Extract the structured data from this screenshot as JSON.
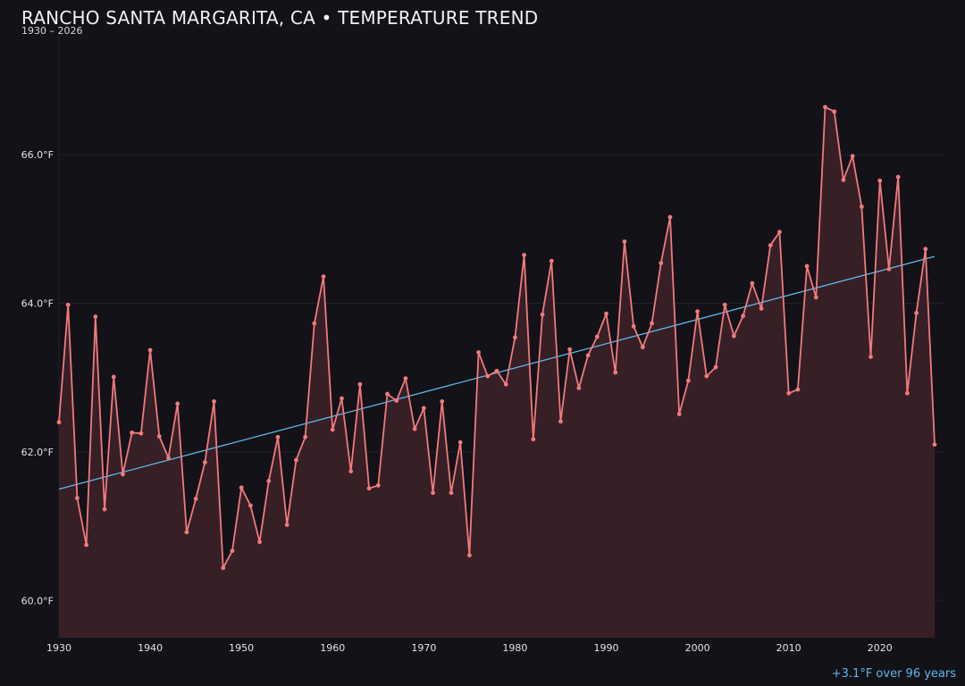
{
  "colors": {
    "background": "#131218",
    "line": "#f07a7c",
    "fill": "#371f26",
    "trend": "#5fb7ea",
    "grid": "#222129",
    "text": "#e4e2e8"
  },
  "chart_data": {
    "type": "line",
    "title": "RANCHO SANTA MARGARITA, CA • TEMPERATURE TREND",
    "subtitle": "1930 – 2026",
    "xlabel": "",
    "ylabel": "",
    "xlim": [
      1930,
      2026
    ],
    "ylim": [
      59.5,
      67.6
    ],
    "grid": true,
    "legend": "none",
    "x_ticks": [
      1930,
      1940,
      1950,
      1960,
      1970,
      1980,
      1990,
      2000,
      2010,
      2020
    ],
    "y_ticks": [
      60,
      62,
      64,
      66
    ],
    "y_tick_labels": [
      "60.0°F",
      "62.0°F",
      "64.0°F",
      "66.0°F"
    ],
    "series": [
      {
        "x": [
          1930,
          1931,
          1932,
          1933,
          1934,
          1935,
          1936,
          1937,
          1938,
          1939,
          1940,
          1941,
          1942,
          1943,
          1944,
          1945,
          1946,
          1947,
          1948,
          1949,
          1950,
          1951,
          1952,
          1953,
          1954,
          1955,
          1956,
          1957,
          1958,
          1959,
          1960,
          1961,
          1962,
          1963,
          1964,
          1965,
          1966,
          1967,
          1968,
          1969,
          1970,
          1971,
          1972,
          1973,
          1974,
          1975,
          1976,
          1977,
          1978,
          1979,
          1980,
          1981,
          1982,
          1983,
          1984,
          1985,
          1986,
          1987,
          1988,
          1989,
          1990,
          1991,
          1992,
          1993,
          1994,
          1995,
          1996,
          1997,
          1998,
          1999,
          2000,
          2001,
          2002,
          2003,
          2004,
          2005,
          2006,
          2007,
          2008,
          2009,
          2010,
          2011,
          2012,
          2013,
          2014,
          2015,
          2016,
          2017,
          2018,
          2019,
          2020,
          2021,
          2022,
          2023,
          2024,
          2025,
          2026
        ],
        "values": [
          62.4,
          63.98,
          61.38,
          60.75,
          63.82,
          61.23,
          63.01,
          61.7,
          62.26,
          62.25,
          63.37,
          62.21,
          61.92,
          62.65,
          60.92,
          61.37,
          61.86,
          62.68,
          60.44,
          60.67,
          61.52,
          61.28,
          60.79,
          61.61,
          62.2,
          61.02,
          61.89,
          62.2,
          63.73,
          64.36,
          62.3,
          62.72,
          61.74,
          62.91,
          61.51,
          61.55,
          62.78,
          62.69,
          62.99,
          62.31,
          62.59,
          61.45,
          62.68,
          61.45,
          62.13,
          60.61,
          63.34,
          63.02,
          63.09,
          62.91,
          63.54,
          64.65,
          62.17,
          63.85,
          64.57,
          62.41,
          63.38,
          62.86,
          63.3,
          63.55,
          63.86,
          63.07,
          64.83,
          63.69,
          63.41,
          63.73,
          64.54,
          65.16,
          62.51,
          62.96,
          63.89,
          63.02,
          63.14,
          63.98,
          63.56,
          63.83,
          64.27,
          63.93,
          64.78,
          64.96,
          62.79,
          62.84,
          64.5,
          64.08,
          66.64,
          66.58,
          65.66,
          65.98,
          65.3,
          63.28,
          65.65,
          64.46,
          65.7,
          62.79,
          63.87,
          64.73,
          62.1
        ]
      }
    ],
    "trend_line": {
      "x": [
        1930,
        2026
      ],
      "y": [
        61.5,
        64.63
      ]
    },
    "annotation": "+3.1°F over 96 years"
  }
}
